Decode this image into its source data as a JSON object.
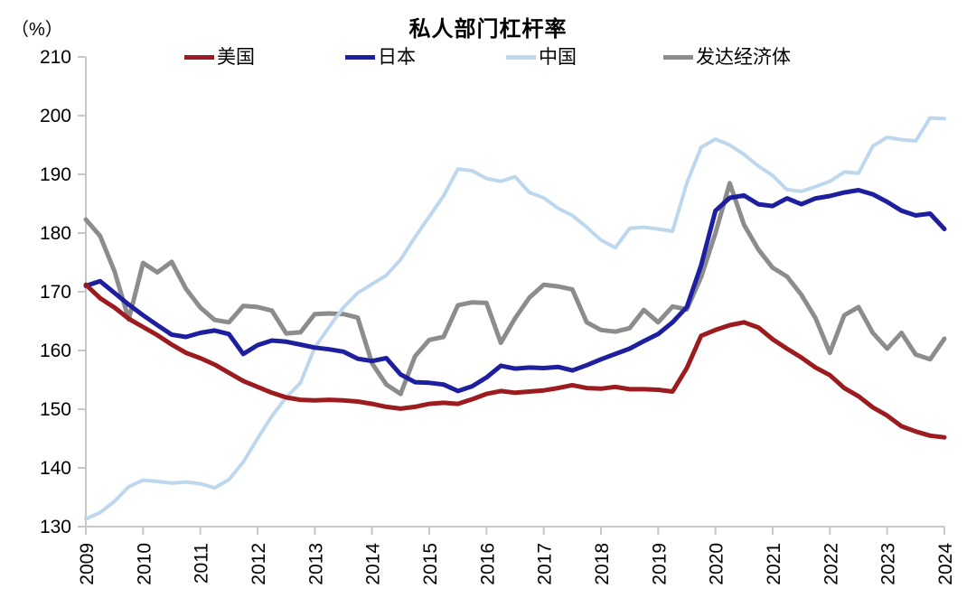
{
  "chart_data": {
    "type": "line",
    "title": "私人部门杠杆率",
    "unit_label": "（%）",
    "grid": false,
    "legend_position": "top",
    "x_axis": {
      "start_year": 2009,
      "end_year": 2024,
      "point_interval_years": 0.25,
      "tick_labels": [
        "2009",
        "2010",
        "2011",
        "2012",
        "2013",
        "2014",
        "2015",
        "2016",
        "2017",
        "2018",
        "2019",
        "2020",
        "2021",
        "2022",
        "2023",
        "2024"
      ],
      "tick_label_rotation_deg": 90
    },
    "y_axis": {
      "min": 130,
      "max": 210,
      "tick_interval": 10,
      "tick_labels": [
        "130",
        "140",
        "150",
        "160",
        "170",
        "180",
        "190",
        "200",
        "210"
      ]
    },
    "axis_color": "#C8C8C8",
    "series": [
      {
        "name": "美国",
        "color": "#9B1B1E",
        "stroke_width": 5,
        "values": [
          171.2,
          168.9,
          167.3,
          165.4,
          164.0,
          162.6,
          161.0,
          159.6,
          158.7,
          157.6,
          156.2,
          154.8,
          153.8,
          152.8,
          152.0,
          151.6,
          151.5,
          151.6,
          151.5,
          151.3,
          150.9,
          150.4,
          150.1,
          150.4,
          150.9,
          151.1,
          150.9,
          151.7,
          152.6,
          153.1,
          152.8,
          153.0,
          153.2,
          153.6,
          154.1,
          153.6,
          153.5,
          153.8,
          153.4,
          153.4,
          153.3,
          153.0,
          157.0,
          162.5,
          163.5,
          164.3,
          164.8,
          163.9,
          161.9,
          160.3,
          158.8,
          157.1,
          155.8,
          153.6,
          152.2,
          150.3,
          148.9,
          147.1,
          146.2,
          145.5,
          145.2
        ]
      },
      {
        "name": "日本",
        "color": "#1D1F9E",
        "stroke_width": 5,
        "values": [
          171.0,
          171.8,
          169.8,
          167.8,
          166.0,
          164.3,
          162.7,
          162.3,
          163.0,
          163.4,
          162.8,
          159.4,
          160.9,
          161.7,
          161.5,
          161.0,
          160.5,
          160.2,
          159.8,
          158.6,
          158.2,
          158.7,
          155.9,
          154.6,
          154.5,
          154.2,
          153.1,
          153.9,
          155.4,
          157.4,
          156.9,
          157.1,
          157.0,
          157.2,
          156.6,
          157.5,
          158.5,
          159.4,
          160.3,
          161.6,
          162.8,
          164.8,
          167.4,
          174.5,
          183.8,
          186.0,
          186.4,
          184.9,
          184.6,
          185.9,
          184.9,
          185.9,
          186.3,
          186.9,
          187.3,
          186.6,
          185.3,
          183.8,
          183.0,
          183.3,
          180.7
        ]
      },
      {
        "name": "中国",
        "color": "#BDD7EE",
        "stroke_width": 4,
        "values": [
          131.3,
          132.4,
          134.3,
          136.8,
          137.9,
          137.7,
          137.4,
          137.6,
          137.3,
          136.6,
          138.0,
          141.0,
          145.0,
          148.8,
          152.0,
          154.5,
          160.5,
          164.0,
          167.3,
          169.8,
          171.3,
          172.8,
          175.5,
          179.3,
          182.8,
          186.3,
          190.9,
          190.6,
          189.3,
          188.8,
          189.6,
          186.9,
          186.0,
          184.2,
          183.0,
          181.0,
          178.8,
          177.5,
          180.8,
          181.0,
          180.7,
          180.3,
          188.5,
          194.6,
          196.0,
          195.0,
          193.4,
          191.4,
          189.8,
          187.4,
          187.1,
          187.9,
          188.8,
          190.4,
          190.2,
          194.8,
          196.3,
          195.9,
          195.7,
          199.6,
          199.5
        ]
      },
      {
        "name": "发达经济体",
        "color": "#8C8C8C",
        "stroke_width": 5,
        "values": [
          182.3,
          179.5,
          173.5,
          165.3,
          174.9,
          173.3,
          175.1,
          170.5,
          167.3,
          165.2,
          164.8,
          167.6,
          167.4,
          166.8,
          162.9,
          163.1,
          166.2,
          166.3,
          166.2,
          165.6,
          157.8,
          154.2,
          152.6,
          159.0,
          161.8,
          162.3,
          167.7,
          168.2,
          168.1,
          161.3,
          165.5,
          169.0,
          171.2,
          170.9,
          170.4,
          164.8,
          163.5,
          163.2,
          163.8,
          166.9,
          164.8,
          167.5,
          167.0,
          172.5,
          180.0,
          188.5,
          181.4,
          177.2,
          174.1,
          172.6,
          169.5,
          165.5,
          159.6,
          166.0,
          167.4,
          163.0,
          160.3,
          163.0,
          159.3,
          158.5,
          162.0
        ]
      }
    ]
  }
}
